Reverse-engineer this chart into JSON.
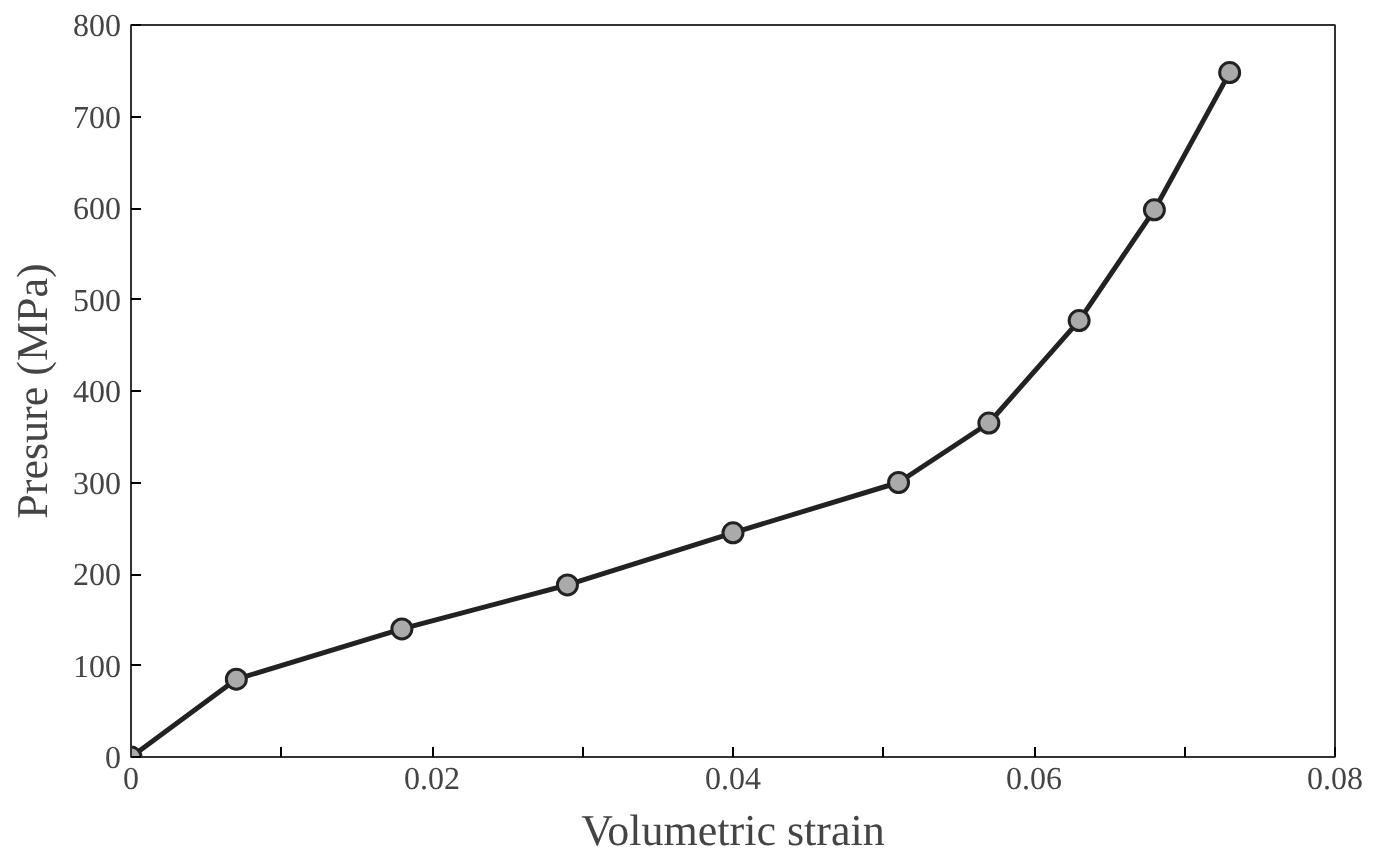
{
  "chart_data": {
    "type": "line",
    "xlabel": "Volumetric strain",
    "ylabel": "Presure (MPa)",
    "x": [
      0,
      0.007,
      0.018,
      0.029,
      0.04,
      0.051,
      0.057,
      0.063,
      0.068,
      0.073
    ],
    "series": [
      {
        "color": "#222222",
        "values": [
          0,
          85,
          140,
          188,
          245,
          300,
          365,
          477,
          598,
          748
        ]
      }
    ],
    "xlim": [
      0,
      0.08
    ],
    "ylim": [
      0,
      800
    ],
    "xticks": [
      0,
      {
        "value": 0.01,
        "label": null
      },
      0.02,
      {
        "value": 0.03,
        "label": null
      },
      0.04,
      {
        "value": 0.05,
        "label": null
      },
      0.06,
      {
        "value": 0.07,
        "label": null
      },
      0.08
    ],
    "yticks": [
      0,
      100,
      200,
      300,
      400,
      500,
      600,
      700,
      800
    ],
    "marker": "circle",
    "line_style": "solid",
    "grid": false
  }
}
